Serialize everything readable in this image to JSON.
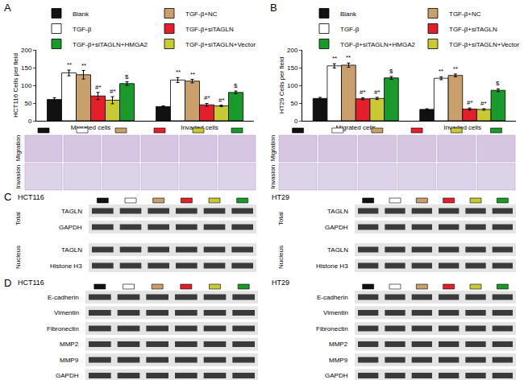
{
  "chart_data": [
    {
      "type": "bar",
      "panel": "A",
      "y_label": "HCT116 Cells per field",
      "categories": [
        "Migrated cells",
        "Invaded cells"
      ],
      "ylim": [
        0,
        200
      ],
      "yticks": [
        0,
        50,
        100,
        150,
        200
      ],
      "legend": "top",
      "series": [
        {
          "name": "Blank",
          "color": "#111111",
          "values": [
            60,
            40
          ],
          "errors": [
            5,
            2
          ]
        },
        {
          "name": "TGF-β",
          "color": "#ffffff",
          "values": [
            135,
            115
          ],
          "errors": [
            8,
            7
          ],
          "annotations": [
            "**",
            "**"
          ]
        },
        {
          "name": "TGF-β+NC",
          "color": "#c9a06c",
          "values": [
            130,
            112
          ],
          "errors": [
            12,
            5
          ],
          "annotations": [
            "**",
            "**"
          ]
        },
        {
          "name": "TGF-β+siTAGLN",
          "color": "#e3202a",
          "values": [
            70,
            45
          ],
          "errors": [
            10,
            4
          ],
          "annotations": [
            "#*",
            "#*"
          ]
        },
        {
          "name": "TGF-β+siTAGLN+Vector",
          "color": "#c9c935",
          "values": [
            58,
            42
          ],
          "errors": [
            10,
            2
          ],
          "annotations": [
            "#*",
            "#*"
          ]
        },
        {
          "name": "TGF-β+siTAGLN+HMGA2",
          "color": "#1a9a2a",
          "values": [
            105,
            80
          ],
          "errors": [
            5,
            4
          ],
          "annotations": [
            "$",
            "$"
          ]
        }
      ]
    },
    {
      "type": "bar",
      "panel": "B",
      "y_label": "HT29 Cells per field",
      "categories": [
        "Migrated cells",
        "Invaded cells"
      ],
      "ylim": [
        0,
        200
      ],
      "yticks": [
        0,
        50,
        100,
        150,
        200
      ],
      "legend": "top",
      "series": [
        {
          "name": "Blank",
          "color": "#111111",
          "values": [
            63,
            32
          ],
          "errors": [
            3,
            2
          ]
        },
        {
          "name": "TGF-β",
          "color": "#ffffff",
          "values": [
            155,
            120
          ],
          "errors": [
            6,
            4
          ],
          "annotations": [
            "**",
            "**"
          ]
        },
        {
          "name": "TGF-β+NC",
          "color": "#c9a06c",
          "values": [
            157,
            128
          ],
          "errors": [
            6,
            4
          ],
          "annotations": [
            "**",
            "**"
          ]
        },
        {
          "name": "TGF-β+siTAGLN",
          "color": "#e3202a",
          "values": [
            62,
            33
          ],
          "errors": [
            3,
            3
          ],
          "annotations": [
            "#*",
            "#*"
          ]
        },
        {
          "name": "TGF-β+siTAGLN+Vector",
          "color": "#c9c935",
          "values": [
            63,
            32
          ],
          "errors": [
            3,
            2
          ],
          "annotations": [
            "#*",
            "#*"
          ]
        },
        {
          "name": "TGF-β+siTAGLN+HMGA2",
          "color": "#1a9a2a",
          "values": [
            121,
            86
          ],
          "errors": [
            4,
            4
          ],
          "annotations": [
            "$",
            "$"
          ]
        }
      ]
    }
  ],
  "micrograph_rows": [
    "Migration",
    "Invasion"
  ],
  "panel_C": {
    "panel": "C",
    "blots": [
      {
        "cell_line": "HCT116",
        "sections": [
          {
            "name": "Total",
            "bands": [
              "TAGLN",
              "GAPDH"
            ]
          },
          {
            "name": "Nucleus",
            "bands": [
              "TAGLN",
              "Histone H3"
            ]
          }
        ]
      },
      {
        "cell_line": "HT29",
        "sections": [
          {
            "name": "Total",
            "bands": [
              "TAGLN",
              "GAPDH"
            ]
          },
          {
            "name": "Nucleus",
            "bands": [
              "TAGLN",
              "Histone H3"
            ]
          }
        ]
      }
    ]
  },
  "panel_D": {
    "panel": "D",
    "blots": [
      {
        "cell_line": "HCT116",
        "bands": [
          "E-cadherin",
          "Vimentin",
          "Fibronectin",
          "MMP2",
          "MMP9",
          "GAPDH"
        ]
      },
      {
        "cell_line": "HT29",
        "bands": [
          "E-cadherin",
          "Vimentin",
          "Fibronectin",
          "MMP2",
          "MMP9",
          "GAPDH"
        ]
      }
    ]
  }
}
